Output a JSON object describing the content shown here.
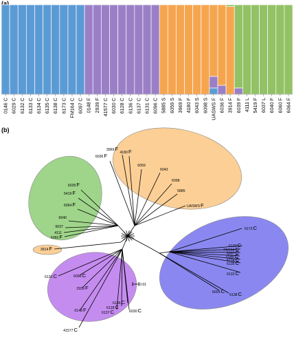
{
  "panel_a_label": "(a)",
  "panel_b_label": "(b)",
  "colors": {
    "blue": "#5b9bd5",
    "purple": "#9b7fc6",
    "orange": "#f6a54f",
    "green": "#93c165",
    "ellipse_orange": "#fbcf96",
    "ellipse_green": "#9fd58a",
    "ellipse_purple": "#c58cf0",
    "ellipse_blue": "#8a88f0"
  },
  "chart_data": {
    "type": "bar",
    "stacked": true,
    "title": "",
    "xlabel": "",
    "ylabel": "",
    "ylim": [
      0,
      1
    ],
    "categories": [
      "0146 C",
      "6029 C",
      "6132 C",
      "6133 C",
      "6134 C",
      "6135 C",
      "6138 C",
      "6173 C",
      "FM164 C",
      "6097 C",
      "0148 F",
      "2939 F",
      "41577 C",
      "6030 C",
      "6128 C",
      "6136 C",
      "6137 C",
      "6131 C",
      "6096 C",
      "5885 S",
      "6059 S",
      "3969 F",
      "4180 F",
      "6043 S",
      "6098 S",
      "UASWS F",
      "6036 F",
      "3914 F",
      "6039 F",
      "4111 L",
      "5419 F",
      "6037 L",
      "6040 F",
      "6060 F",
      "6064 F"
    ],
    "series": [
      {
        "color": "blue",
        "values": [
          1,
          1,
          1,
          1,
          1,
          1,
          1,
          1,
          1,
          1,
          0,
          0,
          0,
          0,
          0,
          0,
          0,
          0,
          0,
          0,
          0,
          0,
          0,
          0,
          0,
          0.07,
          0,
          0,
          0,
          0,
          0,
          0,
          0,
          0,
          0
        ]
      },
      {
        "color": "purple",
        "values": [
          0,
          0,
          0,
          0,
          0,
          0,
          0,
          0,
          0,
          0,
          1,
          1,
          1,
          1,
          1,
          1,
          1,
          1,
          1,
          0,
          0,
          0,
          0,
          0,
          0,
          0.13,
          0.1,
          0,
          0.07,
          0,
          0,
          0,
          0,
          0,
          0
        ]
      },
      {
        "color": "orange",
        "values": [
          0,
          0,
          0,
          0,
          0,
          0,
          0,
          0,
          0,
          0,
          0,
          0,
          0,
          0,
          0,
          0,
          0,
          0,
          0,
          1,
          1,
          1,
          1,
          1,
          1,
          0.8,
          0.9,
          0.98,
          0,
          0,
          0,
          0,
          0,
          0,
          0
        ]
      },
      {
        "color": "green",
        "values": [
          0,
          0,
          0,
          0,
          0,
          0,
          0,
          0,
          0,
          0,
          0,
          0,
          0,
          0,
          0,
          0,
          0,
          0,
          0,
          0,
          0,
          0,
          0,
          0,
          0,
          0,
          0,
          0.02,
          0.93,
          1,
          1,
          1,
          1,
          1,
          1
        ]
      }
    ]
  },
  "tree": {
    "scale_label": "0.01",
    "leaves": [
      {
        "id": "3969",
        "suffix": "F"
      },
      {
        "id": "4180",
        "suffix": "F"
      },
      {
        "id": "6036",
        "suffix": "F"
      },
      {
        "id": "6059",
        "suffix": ""
      },
      {
        "id": "6043",
        "suffix": ""
      },
      {
        "id": "6098",
        "suffix": ""
      },
      {
        "id": "5885",
        "suffix": ""
      },
      {
        "id": "UASWS",
        "suffix": "F"
      },
      {
        "id": "6039",
        "suffix": "F"
      },
      {
        "id": "5419",
        "suffix": "F"
      },
      {
        "id": "6064",
        "suffix": "F"
      },
      {
        "id": "6040",
        "suffix": ""
      },
      {
        "id": "6037",
        "suffix": ""
      },
      {
        "id": "4111",
        "suffix": ""
      },
      {
        "id": "6060",
        "suffix": "F"
      },
      {
        "id": "3914",
        "suffix": "F"
      },
      {
        "id": "6173",
        "suffix": "C"
      },
      {
        "id": "6133",
        "suffix": "C"
      },
      {
        "id": "FM164",
        "suffix": "C"
      },
      {
        "id": "6097",
        "suffix": "C"
      },
      {
        "id": "0146",
        "suffix": "C"
      },
      {
        "id": "6134",
        "suffix": "C"
      },
      {
        "id": "6135",
        "suffix": "C"
      },
      {
        "id": "6132",
        "suffix": "C"
      },
      {
        "id": "6029",
        "suffix": "C"
      },
      {
        "id": "6138",
        "suffix": "C"
      },
      {
        "id": "6131",
        "suffix": "C"
      },
      {
        "id": "6096",
        "suffix": "C"
      },
      {
        "id": "2939",
        "suffix": "F"
      },
      {
        "id": "0148",
        "suffix": "F"
      },
      {
        "id": "6136",
        "suffix": "C"
      },
      {
        "id": "6128",
        "suffix": "C"
      },
      {
        "id": "6137",
        "suffix": "C"
      },
      {
        "id": "6030",
        "suffix": "C"
      },
      {
        "id": "41577",
        "suffix": "C"
      }
    ]
  }
}
